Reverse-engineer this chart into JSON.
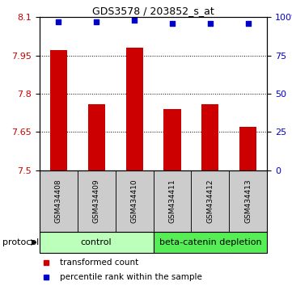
{
  "title": "GDS3578 / 203852_s_at",
  "samples": [
    "GSM434408",
    "GSM434409",
    "GSM434410",
    "GSM434411",
    "GSM434412",
    "GSM434413"
  ],
  "transformed_counts": [
    7.97,
    7.76,
    7.98,
    7.74,
    7.76,
    7.67
  ],
  "percentile_ranks": [
    97,
    97,
    98,
    96,
    96,
    96
  ],
  "ylim_left": [
    7.5,
    8.1
  ],
  "ylim_right": [
    0,
    100
  ],
  "yticks_left": [
    7.5,
    7.65,
    7.8,
    7.95,
    8.1
  ],
  "yticks_right": [
    0,
    25,
    50,
    75,
    100
  ],
  "bar_color": "#cc0000",
  "dot_color": "#0000cc",
  "control_color": "#bbffbb",
  "depletion_color": "#55ee55",
  "sample_box_color": "#cccccc",
  "control_label": "control",
  "depletion_label": "beta-catenin depletion",
  "protocol_label": "protocol",
  "legend_bar_label": "transformed count",
  "legend_dot_label": "percentile rank within the sample",
  "n_control": 3,
  "n_depletion": 3,
  "bar_width": 0.45,
  "title_fontsize": 9,
  "tick_fontsize": 8,
  "sample_fontsize": 6.5,
  "legend_fontsize": 7.5,
  "proto_fontsize": 8
}
